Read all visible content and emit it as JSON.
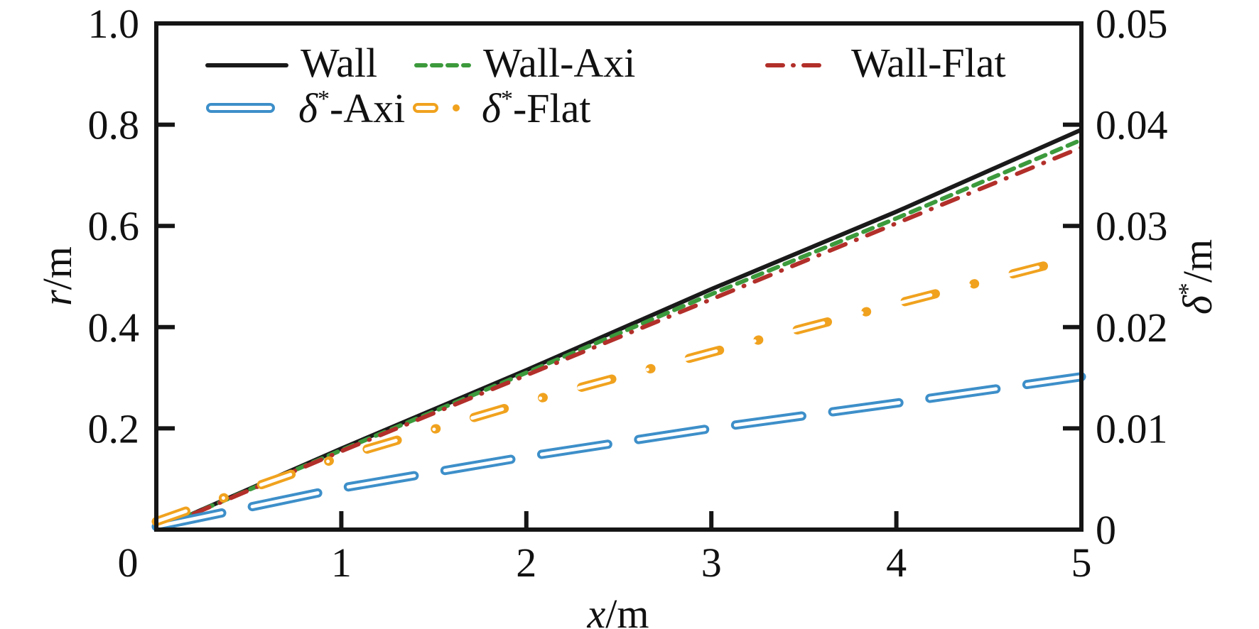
{
  "chart_data": {
    "type": "line",
    "title": "",
    "xlabel": {
      "var": "x",
      "unit": "/m"
    },
    "ylabel_left": {
      "var": "r",
      "unit": "/m"
    },
    "ylabel_right": {
      "var": "δ",
      "sup": "*",
      "unit": "/m"
    },
    "xlim": [
      0,
      5
    ],
    "ylim_left": [
      0,
      1.0
    ],
    "ylim_right": [
      0,
      0.05
    ],
    "x_ticks": [
      "0",
      "1",
      "2",
      "3",
      "4",
      "5"
    ],
    "x_tick_values": [
      0,
      1,
      2,
      3,
      4,
      5
    ],
    "y_left_ticks": [
      "0.2",
      "0.4",
      "0.6",
      "0.8",
      "1.0"
    ],
    "y_left_tick_values": [
      0.2,
      0.4,
      0.6,
      0.8,
      1.0
    ],
    "y_right_ticks": [
      "0",
      "0.01",
      "0.02",
      "0.03",
      "0.04",
      "0.05"
    ],
    "y_right_tick_values": [
      0,
      0.01,
      0.02,
      0.03,
      0.04,
      0.05
    ],
    "grid": false,
    "legend_position": "top-left",
    "series": [
      {
        "name": "Wall",
        "label_main": "Wall",
        "label_prefix": "",
        "axis": "left",
        "color": "#1a1a1a",
        "style": "solid",
        "x": [
          0,
          1,
          2,
          3,
          4,
          5
        ],
        "y": [
          0,
          0.16,
          0.315,
          0.475,
          0.628,
          0.79
        ]
      },
      {
        "name": "Wall-Axi",
        "label_main": "Wall-Axi",
        "label_prefix": "",
        "axis": "left",
        "color": "#3c9a3c",
        "style": "dashed",
        "x": [
          0,
          1,
          2,
          3,
          4,
          5
        ],
        "y": [
          0,
          0.157,
          0.31,
          0.465,
          0.615,
          0.77
        ]
      },
      {
        "name": "Wall-Flat",
        "label_main": "Wall-Flat",
        "label_prefix": "",
        "axis": "left",
        "color": "#b22f2a",
        "style": "dashdot",
        "x": [
          0,
          1,
          2,
          3,
          4,
          5
        ],
        "y": [
          0,
          0.155,
          0.305,
          0.455,
          0.605,
          0.755
        ]
      },
      {
        "name": "δ*-Axi",
        "label_main": "-Axi",
        "label_prefix": "δ",
        "axis": "right",
        "color": "#3d8fc9",
        "style": "hollow-dashed",
        "x": [
          0,
          1,
          2,
          3,
          4,
          5
        ],
        "y": [
          0.0003,
          0.0041,
          0.0072,
          0.01,
          0.0125,
          0.0151
        ]
      },
      {
        "name": "δ*-Flat",
        "label_main": "-Flat",
        "label_prefix": "δ",
        "axis": "right",
        "color": "#f0a21e",
        "style": "hollow-dashdot",
        "x": [
          0,
          1,
          2,
          3,
          4,
          5
        ],
        "y": [
          0.0008,
          0.0072,
          0.0126,
          0.0175,
          0.0223,
          0.027
        ]
      }
    ]
  }
}
